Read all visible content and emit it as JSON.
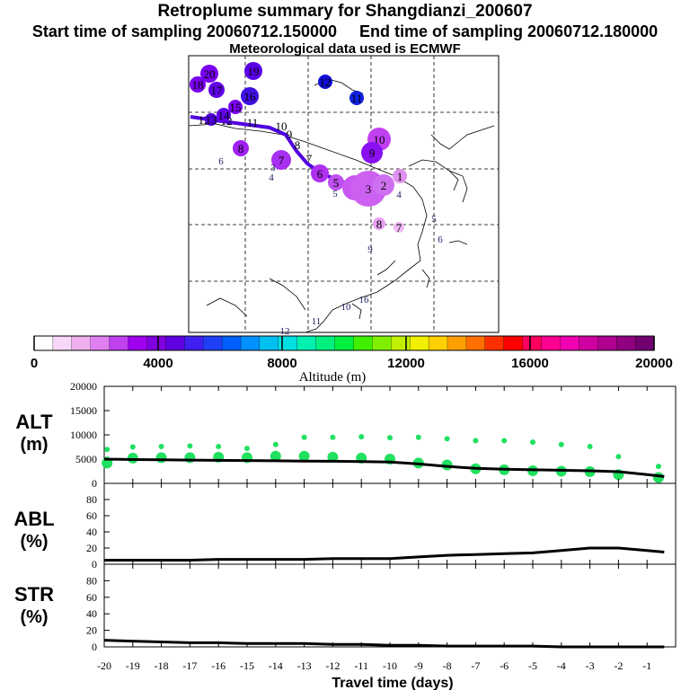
{
  "header": {
    "title": "Retroplume summary for Shangdianzi_200607",
    "start_label": "Start time of sampling 20060712.150000",
    "end_label": "End time of sampling 20060712.180000",
    "met_label": "Meteorological data used is ECMWF"
  },
  "colorbar": {
    "ticks": [
      "0",
      "4000",
      "8000",
      "12000",
      "16000",
      "20000"
    ],
    "label": "Altitude (m)",
    "colors": [
      "#ffffff",
      "#f8d8f8",
      "#f0b0f0",
      "#e080f0",
      "#c040f0",
      "#a000f0",
      "#8000e0",
      "#6000e0",
      "#4020f0",
      "#2040f8",
      "#0060ff",
      "#0090ff",
      "#00c0f0",
      "#00e0e0",
      "#00f0b0",
      "#00f080",
      "#00f040",
      "#40f000",
      "#80f000",
      "#c0f000",
      "#f0f000",
      "#ffd000",
      "#ffa000",
      "#ff7000",
      "#ff3000",
      "#ff0000",
      "#ff0060",
      "#ff0090",
      "#f000b0",
      "#d000a0",
      "#b00090",
      "#900080",
      "#700070"
    ]
  },
  "map": {
    "trajectory_color": "#5000e0",
    "plume_points": [
      {
        "label": "20",
        "color": "#7a00f0",
        "size": 10
      },
      {
        "label": "19",
        "color": "#5a00e6",
        "size": 10
      },
      {
        "label": "18",
        "color": "#7a00f0",
        "size": 9
      },
      {
        "label": "17",
        "color": "#6200e8",
        "size": 9
      },
      {
        "label": "16",
        "color": "#4010e0",
        "size": 10
      },
      {
        "label": "15",
        "color": "#7a00f0",
        "size": 8
      },
      {
        "label": "14",
        "color": "#6000e8",
        "size": 8
      },
      {
        "label": "13",
        "color": "#5000e0",
        "size": 7
      },
      {
        "label": "12",
        "color": "#1010d8",
        "size": 8
      },
      {
        "label": "11",
        "color": "#1020e0",
        "size": 8
      },
      {
        "label": "10",
        "color": "#c040f0",
        "size": 13
      },
      {
        "label": "9",
        "color": "#8a10f0",
        "size": 12
      },
      {
        "label": "8",
        "color": "#a020f0",
        "size": 9
      },
      {
        "label": "7",
        "color": "#a830f0",
        "size": 11
      },
      {
        "label": "6",
        "color": "#b030f0",
        "size": 10
      },
      {
        "label": "5",
        "color": "#c050f0",
        "size": 9
      },
      {
        "label": "4",
        "color": "#c858f0",
        "size": 14
      },
      {
        "label": "3",
        "color": "#cc60f0",
        "size": 20
      },
      {
        "label": "2",
        "color": "#cf70f0",
        "size": 12
      },
      {
        "label": "1",
        "color": "#e090f0",
        "size": 8
      },
      {
        "label": "8",
        "color": "#e6a0f0",
        "size": 7
      },
      {
        "label": "7",
        "color": "#eeb8f4",
        "size": 6
      }
    ]
  },
  "panels": {
    "alt": {
      "label_line1": "ALT",
      "label_line2": "(m)",
      "yticks": [
        "20000",
        "15000",
        "10000",
        "5000",
        "0"
      ],
      "ylim": [
        0,
        20000
      ]
    },
    "abl": {
      "label_line1": "ABL",
      "label_line2": "(%)",
      "yticks": [
        "80",
        "60",
        "40",
        "20",
        "0"
      ],
      "ylim": [
        0,
        100
      ]
    },
    "str": {
      "label_line1": "STR",
      "label_line2": "(%)",
      "yticks": [
        "80",
        "60",
        "40",
        "20",
        "0"
      ],
      "ylim": [
        0,
        100
      ]
    }
  },
  "xaxis": {
    "label": "Travel time (days)",
    "ticks": [
      "-20",
      "-19",
      "-18",
      "-17",
      "-16",
      "-15",
      "-14",
      "-13",
      "-12",
      "-11",
      "-10",
      "-9",
      "-8",
      "-7",
      "-6",
      "-5",
      "-4",
      "-3",
      "-2",
      "-1"
    ],
    "xlim": [
      -20,
      0
    ]
  },
  "chart_data": {
    "type": "line",
    "title": "Retroplume summary for Shangdianzi_200607",
    "xlabel": "Travel time (days)",
    "x": [
      -20,
      -19,
      -18,
      -17,
      -16,
      -15,
      -14,
      -13,
      -12,
      -11,
      -10,
      -9,
      -8,
      -7,
      -6,
      -5,
      -4,
      -3,
      -2,
      -1,
      -0.4
    ],
    "series": [
      {
        "name": "ALT (m)",
        "values": [
          5000,
          4900,
          4850,
          4800,
          4750,
          4700,
          4650,
          4600,
          4550,
          4500,
          4400,
          4000,
          3500,
          3100,
          2900,
          2800,
          2700,
          2600,
          2400,
          1800,
          1400
        ]
      },
      {
        "name": "ABL (%)",
        "values": [
          5,
          5,
          5,
          5,
          6,
          6,
          6,
          6,
          7,
          7,
          7,
          9,
          11,
          12,
          13,
          14,
          17,
          20,
          20,
          17,
          15
        ]
      },
      {
        "name": "STR (%)",
        "values": [
          8,
          7,
          6,
          5,
          5,
          4,
          4,
          4,
          3,
          3,
          2,
          2,
          1,
          1,
          1,
          1,
          0,
          0,
          0,
          0,
          0
        ]
      }
    ],
    "alt_scatter": [
      {
        "x": -19.9,
        "values": [
          7000,
          5000,
          4200
        ]
      },
      {
        "x": -19,
        "values": [
          7500,
          5200
        ]
      },
      {
        "x": -18,
        "values": [
          7600,
          5300
        ]
      },
      {
        "x": -17,
        "values": [
          7700,
          5300
        ]
      },
      {
        "x": -16,
        "values": [
          7600,
          5400
        ]
      },
      {
        "x": -15,
        "values": [
          7200,
          5300
        ]
      },
      {
        "x": -14,
        "values": [
          8000,
          5600
        ]
      },
      {
        "x": -13,
        "values": [
          9500,
          5600
        ]
      },
      {
        "x": -12,
        "values": [
          9500,
          5400
        ]
      },
      {
        "x": -11,
        "values": [
          9600,
          5200
        ]
      },
      {
        "x": -10,
        "values": [
          9400,
          5000
        ]
      },
      {
        "x": -9,
        "values": [
          9500,
          4200
        ]
      },
      {
        "x": -8,
        "values": [
          9200,
          3800
        ]
      },
      {
        "x": -7,
        "values": [
          8800,
          3000
        ]
      },
      {
        "x": -6,
        "values": [
          8800,
          2800
        ]
      },
      {
        "x": -5,
        "values": [
          8500,
          2600
        ]
      },
      {
        "x": -4,
        "values": [
          8000,
          2500
        ]
      },
      {
        "x": -3,
        "values": [
          7600,
          2400
        ]
      },
      {
        "x": -2,
        "values": [
          5500,
          1800
        ]
      },
      {
        "x": -0.6,
        "values": [
          3500,
          1200
        ]
      }
    ],
    "colorbar_ticks": [
      "0",
      "4000",
      "8000",
      "12000",
      "16000",
      "20000"
    ],
    "colorbar_label": "Altitude (m)"
  }
}
